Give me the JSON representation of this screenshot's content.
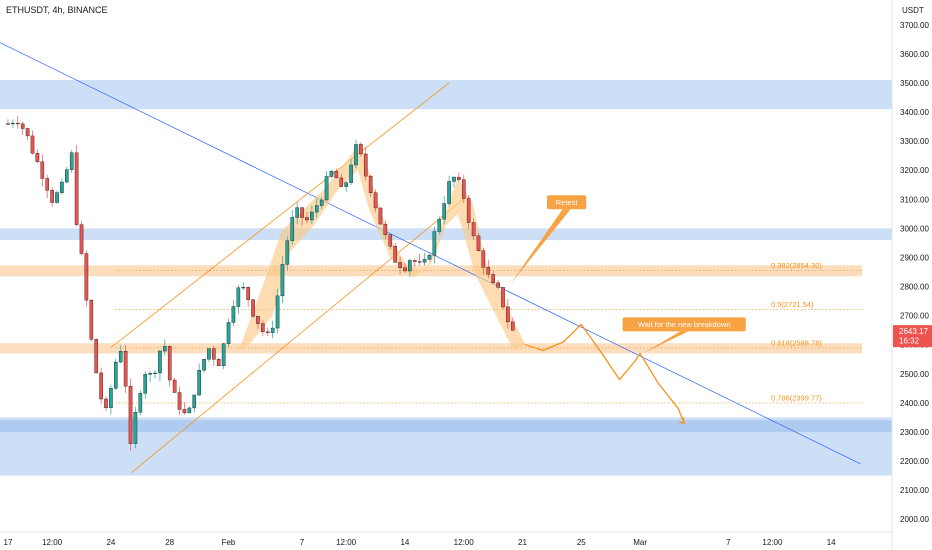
{
  "chart_data": {
    "type": "candlestick",
    "title": "ETHUSDT, 4h, BINANCE",
    "y_unit": "USDT",
    "ylim": [
      1960,
      3780
    ],
    "y_ticks": [
      2000,
      2100,
      2200,
      2300,
      2400,
      2500,
      2600,
      2700,
      2800,
      2900,
      3000,
      3100,
      3200,
      3300,
      3400,
      3500,
      3600,
      3700
    ],
    "y_tick_labels": [
      "2000.00",
      "2100.00",
      "2200.00",
      "2300.00",
      "2400.00",
      "2500.00",
      "2600.00",
      "2700.00",
      "2800.00",
      "2900.00",
      "3000.00",
      "3100.00",
      "3200.00",
      "3300.00",
      "3400.00",
      "3500.00",
      "3600.00",
      "3700.00"
    ],
    "x_ticks": [
      {
        "label": "17",
        "day": 0
      },
      {
        "label": "12:00",
        "day": 1.5
      },
      {
        "label": "24",
        "day": 3.5
      },
      {
        "label": "28",
        "day": 5.5
      },
      {
        "label": "Feb",
        "day": 7.5
      },
      {
        "label": "7",
        "day": 10
      },
      {
        "label": "12:00",
        "day": 11.5
      },
      {
        "label": "14",
        "day": 13.5
      },
      {
        "label": "12:00",
        "day": 15.5
      },
      {
        "label": "21",
        "day": 17.5
      },
      {
        "label": "25",
        "day": 19.5
      },
      {
        "label": "Mar",
        "day": 21.5
      },
      {
        "label": "7",
        "day": 24.5
      },
      {
        "label": "12:00",
        "day": 26
      },
      {
        "label": "14",
        "day": 28
      }
    ],
    "close_path": [
      [
        0.0,
        3360
      ],
      [
        0.3,
        3380
      ],
      [
        0.6,
        3330
      ],
      [
        0.9,
        3250
      ],
      [
        1.2,
        3180
      ],
      [
        1.5,
        3100
      ],
      [
        1.8,
        3130
      ],
      [
        2.0,
        3200
      ],
      [
        2.2,
        3260
      ],
      [
        2.35,
        3000
      ],
      [
        2.5,
        2900
      ],
      [
        2.7,
        2720
      ],
      [
        2.9,
        2560
      ],
      [
        3.1,
        2450
      ],
      [
        3.3,
        2350
      ],
      [
        3.5,
        2450
      ],
      [
        3.7,
        2560
      ],
      [
        3.9,
        2600
      ],
      [
        4.05,
        2400
      ],
      [
        4.15,
        2230
      ],
      [
        4.3,
        2340
      ],
      [
        4.5,
        2450
      ],
      [
        4.7,
        2520
      ],
      [
        4.9,
        2480
      ],
      [
        5.1,
        2560
      ],
      [
        5.3,
        2620
      ],
      [
        5.5,
        2480
      ],
      [
        5.7,
        2410
      ],
      [
        5.9,
        2380
      ],
      [
        6.1,
        2340
      ],
      [
        6.3,
        2430
      ],
      [
        6.5,
        2500
      ],
      [
        6.7,
        2560
      ],
      [
        6.9,
        2600
      ],
      [
        7.1,
        2520
      ],
      [
        7.3,
        2580
      ],
      [
        7.5,
        2690
      ],
      [
        7.7,
        2760
      ],
      [
        7.9,
        2800
      ],
      [
        8.1,
        2780
      ],
      [
        8.3,
        2720
      ],
      [
        8.5,
        2680
      ],
      [
        8.7,
        2640
      ],
      [
        8.9,
        2620
      ],
      [
        9.1,
        2720
      ],
      [
        9.3,
        2860
      ],
      [
        9.5,
        2960
      ],
      [
        9.7,
        3040
      ],
      [
        9.9,
        3060
      ],
      [
        10.1,
        3020
      ],
      [
        10.3,
        3040
      ],
      [
        10.5,
        3080
      ],
      [
        10.7,
        3120
      ],
      [
        10.9,
        3180
      ],
      [
        11.1,
        3200
      ],
      [
        11.3,
        3120
      ],
      [
        11.5,
        3160
      ],
      [
        11.7,
        3240
      ],
      [
        11.9,
        3290
      ],
      [
        12.1,
        3200
      ],
      [
        12.3,
        3150
      ],
      [
        12.5,
        3080
      ],
      [
        12.7,
        3010
      ],
      [
        12.9,
        2950
      ],
      [
        13.1,
        2900
      ],
      [
        13.3,
        2880
      ],
      [
        13.5,
        2870
      ],
      [
        13.7,
        2900
      ],
      [
        13.9,
        2880
      ],
      [
        14.1,
        2860
      ],
      [
        14.3,
        2910
      ],
      [
        14.5,
        2980
      ],
      [
        14.7,
        3050
      ],
      [
        14.9,
        3120
      ],
      [
        15.1,
        3180
      ],
      [
        15.3,
        3160
      ],
      [
        15.5,
        3110
      ],
      [
        15.7,
        3020
      ],
      [
        15.9,
        2940
      ],
      [
        16.1,
        2900
      ],
      [
        16.3,
        2840
      ],
      [
        16.5,
        2800
      ],
      [
        16.7,
        2780
      ],
      [
        16.9,
        2720
      ],
      [
        17.1,
        2650
      ],
      [
        17.25,
        2640
      ]
    ],
    "resistance_zones": [
      {
        "low": 3410,
        "high": 3510
      },
      {
        "low": 2960,
        "high": 3000
      }
    ],
    "support_zones": [
      {
        "low": 2150,
        "high": 2350
      },
      {
        "low": 2300,
        "high": 2340
      }
    ],
    "fib_levels": [
      {
        "label": "0.382(2854.30)",
        "price": 2854.3,
        "zone": [
          2835,
          2873
        ]
      },
      {
        "label": "0.5(2721.54)",
        "price": 2721.54
      },
      {
        "label": "0.618(2588.78)",
        "price": 2588.78,
        "zone": [
          2570,
          2605
        ]
      },
      {
        "label": "0.786(2399.77)",
        "price": 2399.77
      }
    ],
    "fib_anchor": {
      "day": 5.0,
      "price": 2721.54
    },
    "downtrend_line": [
      [
        -0.5,
        3650
      ],
      [
        29.0,
        2190
      ]
    ],
    "channel_upper": [
      [
        3.5,
        2590
      ],
      [
        15.0,
        3500
      ]
    ],
    "channel_lower": [
      [
        4.2,
        2160
      ],
      [
        15.6,
        3110
      ]
    ],
    "pattern_highlight": [
      [
        7.85,
        2580
      ],
      [
        8.8,
        2840
      ],
      [
        9.3,
        2990
      ],
      [
        10.2,
        3080
      ],
      [
        10.8,
        3140
      ],
      [
        11.5,
        3230
      ],
      [
        12.0,
        3300
      ],
      [
        12.4,
        3150
      ],
      [
        13.0,
        2960
      ],
      [
        13.6,
        2870
      ],
      [
        14.2,
        2850
      ],
      [
        14.6,
        2960
      ],
      [
        15.0,
        3090
      ],
      [
        15.3,
        3170
      ],
      [
        15.8,
        3090
      ],
      [
        16.3,
        2860
      ],
      [
        16.8,
        2780
      ],
      [
        17.2,
        2680
      ],
      [
        17.6,
        2600
      ],
      [
        17.2,
        2580
      ],
      [
        16.6,
        2700
      ],
      [
        15.9,
        2840
      ],
      [
        15.3,
        3050
      ],
      [
        14.9,
        3010
      ],
      [
        14.4,
        2880
      ],
      [
        13.8,
        2830
      ],
      [
        13.0,
        2900
      ],
      [
        12.3,
        3060
      ],
      [
        11.9,
        3200
      ],
      [
        11.2,
        3130
      ],
      [
        10.4,
        3010
      ],
      [
        9.6,
        2920
      ],
      [
        9.0,
        2700
      ],
      [
        8.2,
        2600
      ],
      [
        7.85,
        2580
      ]
    ],
    "projection_path": [
      [
        17.6,
        2600
      ],
      [
        18.2,
        2580
      ],
      [
        18.9,
        2610
      ],
      [
        19.5,
        2670
      ],
      [
        20.2,
        2570
      ],
      [
        20.8,
        2480
      ],
      [
        21.3,
        2540
      ],
      [
        21.5,
        2570
      ],
      [
        22.1,
        2470
      ],
      [
        22.8,
        2380
      ],
      [
        23.0,
        2330
      ]
    ],
    "callouts": [
      {
        "text": "Retest",
        "anchor": [
          17.1,
          2810
        ],
        "box_center": [
          19.0,
          3090
        ]
      },
      {
        "text": "Wait for the new breakdown",
        "anchor": [
          21.6,
          2570
        ],
        "box_center": [
          23.0,
          2670
        ]
      }
    ],
    "last_price": {
      "price": 2643.17,
      "label": "2643.17",
      "countdown": "16:32"
    },
    "colors": {
      "bull": "#26a69a",
      "bear": "#ef5350",
      "candle_body_up": "#0f0f0f",
      "candle_body_down": "#0f0f0f",
      "blue_zone": "#c7dbf5",
      "blue_zone_strong": "#a9c8f0",
      "fib": "#f7931a",
      "fib_zone": "#fbd8b4",
      "channel": "#f7931a",
      "trend": "#2962ff",
      "highlight": "#fbc986",
      "projection": "#f7931a",
      "callout": "#f7a344",
      "price_tag": "#ef5350"
    }
  }
}
